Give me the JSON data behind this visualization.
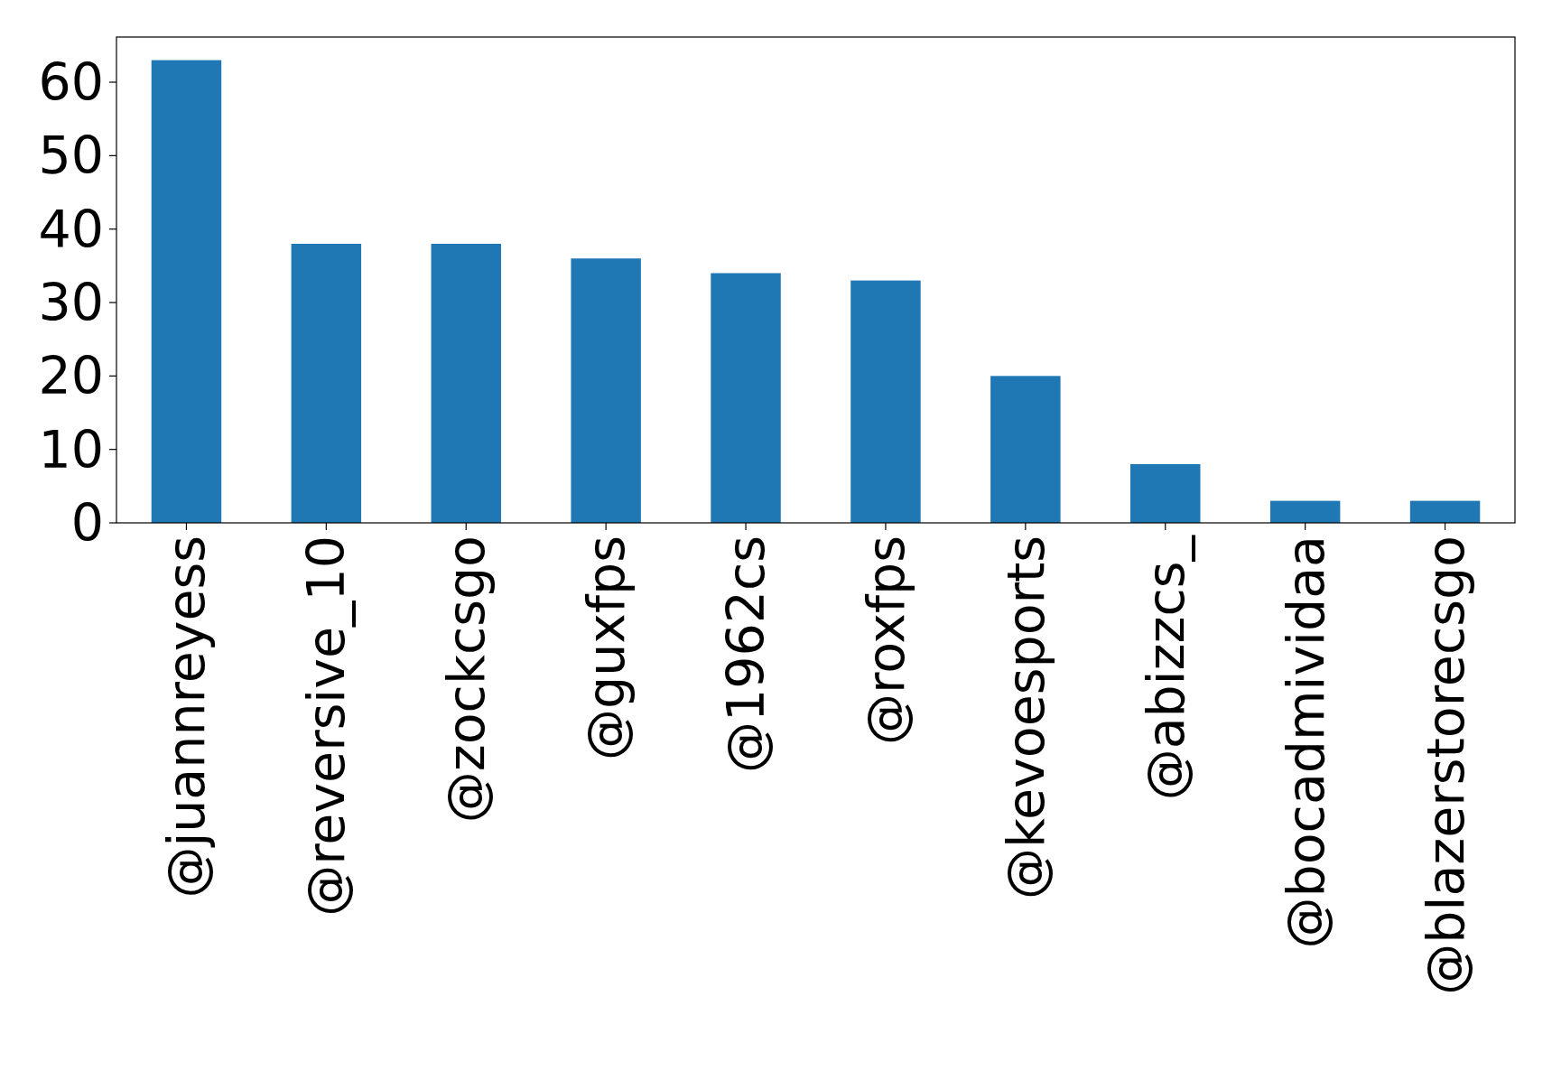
{
  "chart_data": {
    "type": "bar",
    "categories": [
      "@juannreyess",
      "@reversive_10",
      "@zockcsgo",
      "@guxfps",
      "@1962cs",
      "@roxfps",
      "@kevoesports",
      "@abizzcs_",
      "@bocadmividaa",
      "@blazerstorecsgo"
    ],
    "values": [
      63,
      38,
      38,
      36,
      34,
      33,
      20,
      8,
      3,
      3
    ],
    "color": "#1f77b4",
    "ylim": [
      0,
      66.15
    ],
    "yticks": [
      0,
      10,
      20,
      30,
      40,
      50,
      60
    ]
  }
}
